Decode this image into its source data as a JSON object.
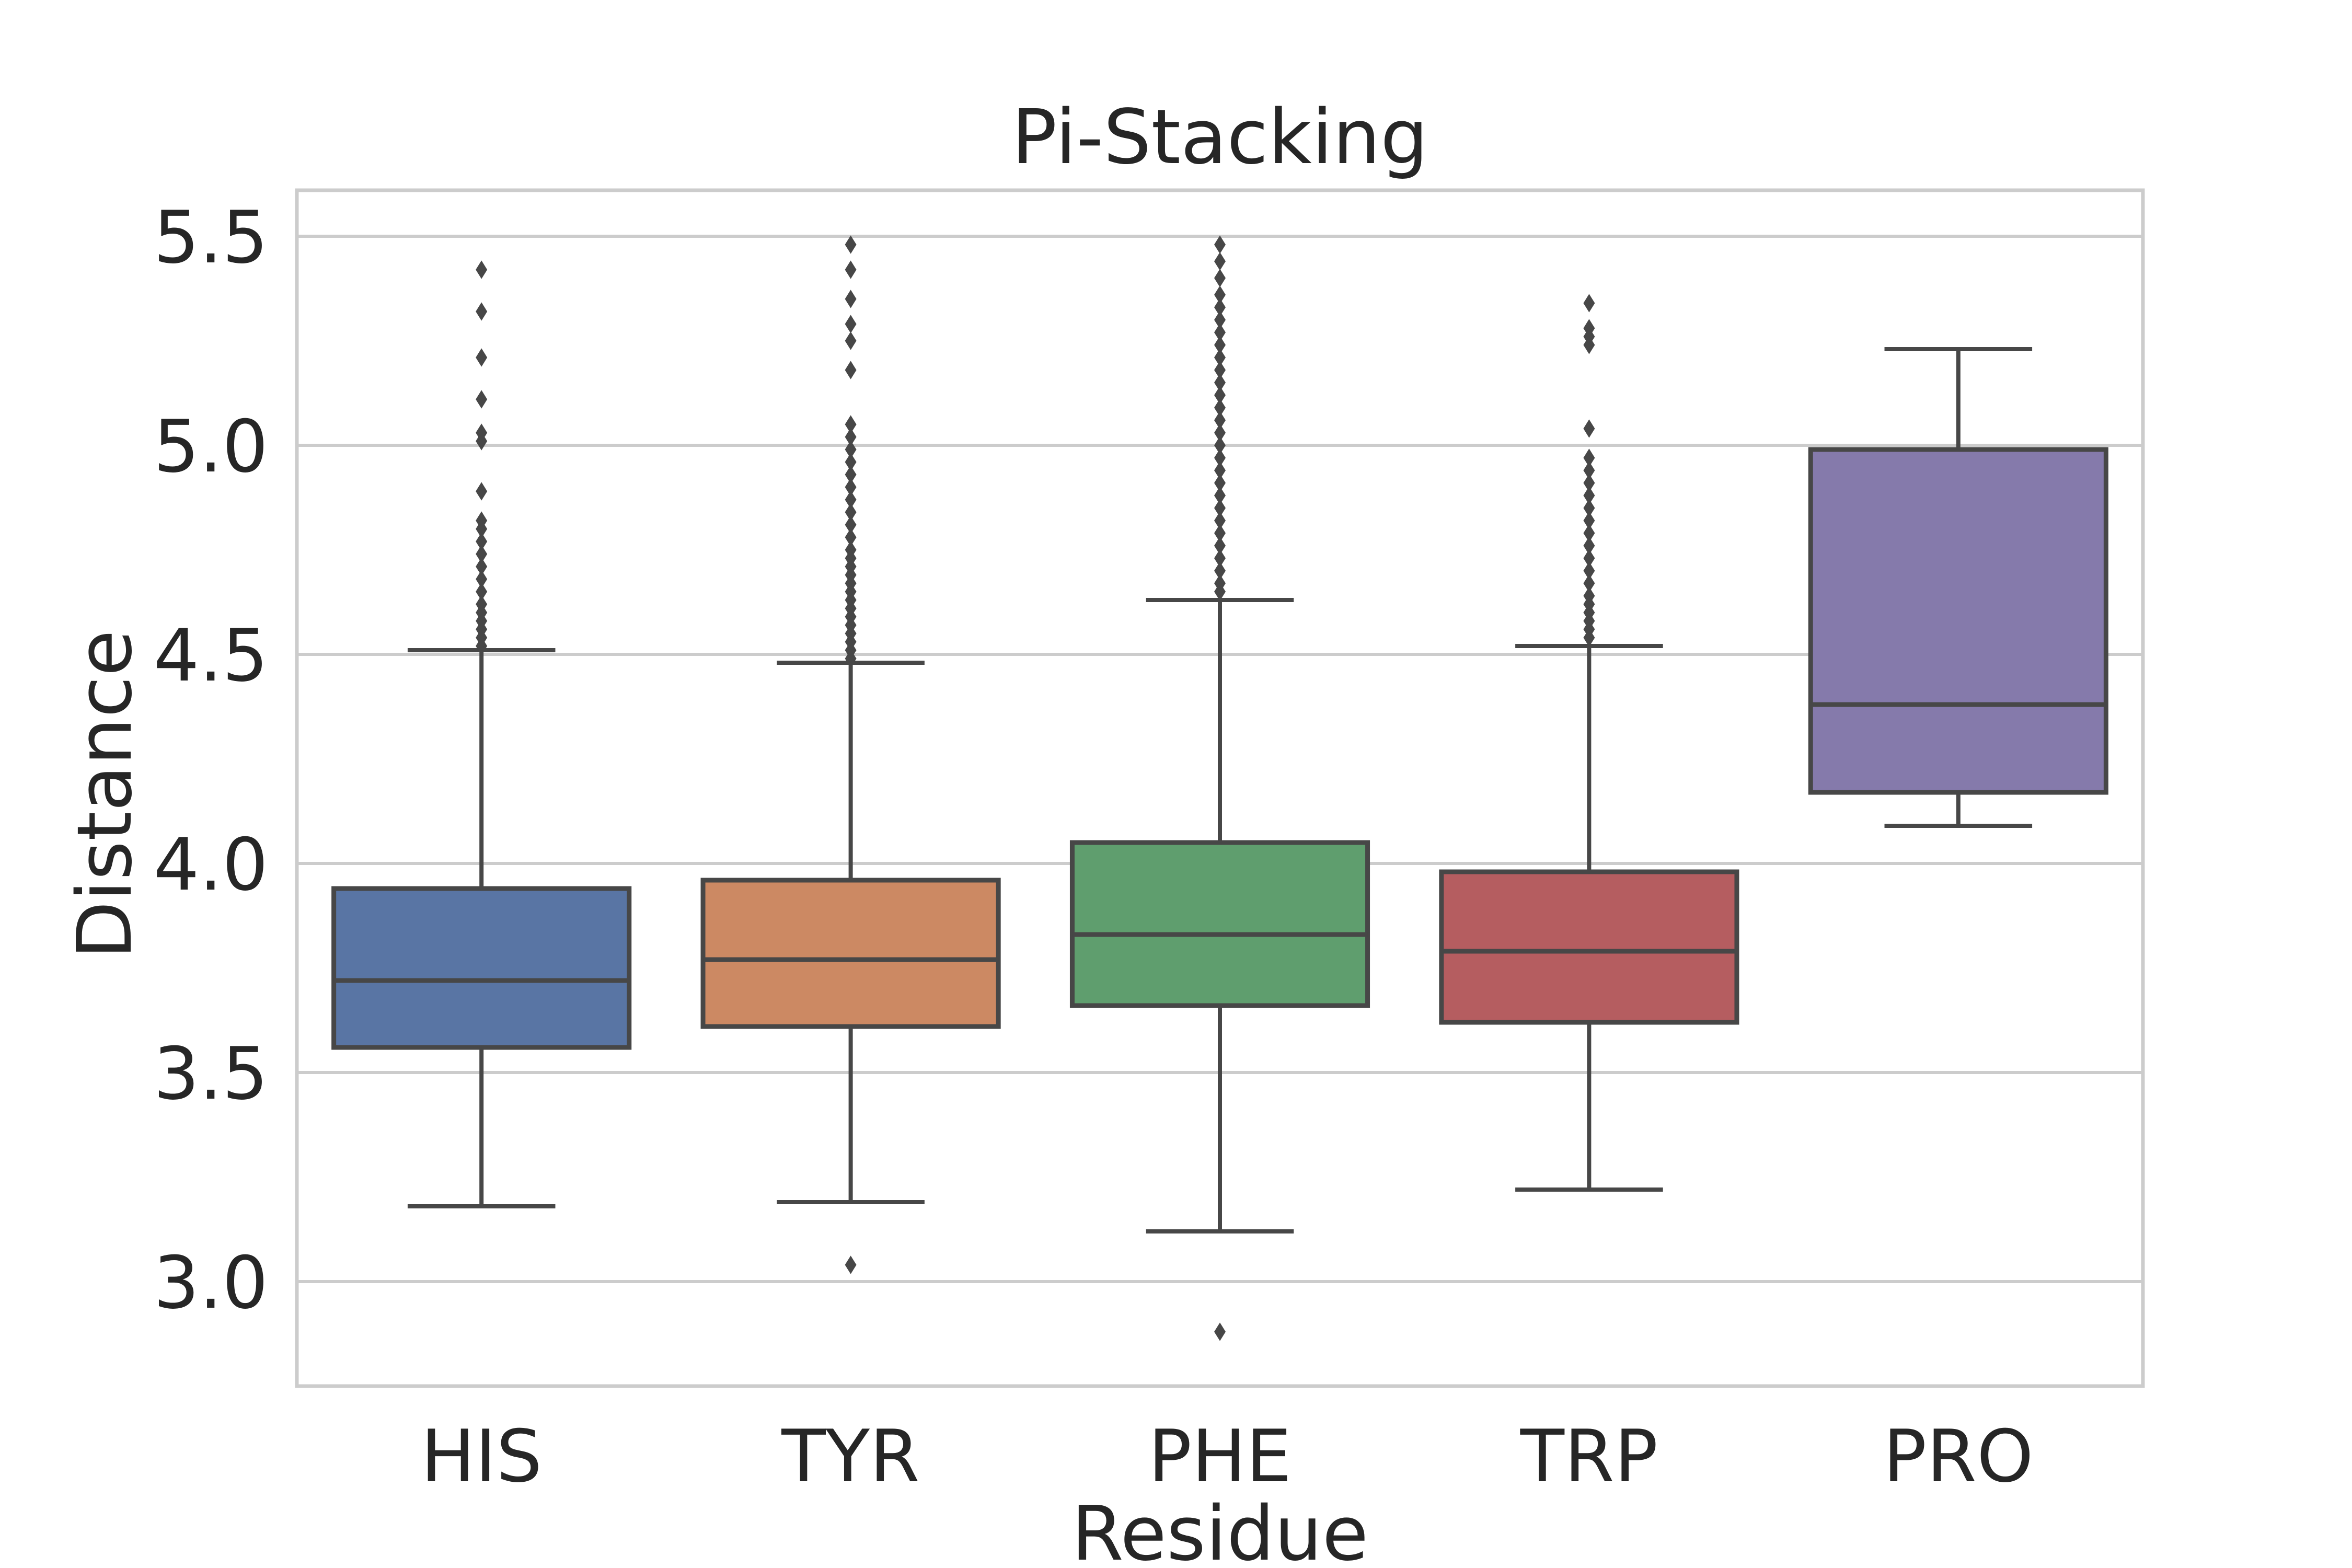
{
  "chart_data": {
    "type": "boxplot",
    "title": "Pi-Stacking",
    "xlabel": "Residue",
    "ylabel": "Distance",
    "ylim": [
      2.75,
      5.61
    ],
    "yticks": [
      3.0,
      3.5,
      4.0,
      4.5,
      5.0,
      5.5
    ],
    "ytick_labels": [
      "3.0",
      "3.5",
      "4.0",
      "4.5",
      "5.0",
      "5.5"
    ],
    "grid": true,
    "categories": [
      "HIS",
      "TYR",
      "PHE",
      "TRP",
      "PRO"
    ],
    "boxes": [
      {
        "label": "HIS",
        "color": "#5975a4",
        "whisker_low": 3.18,
        "q1": 3.56,
        "median": 3.72,
        "q3": 3.94,
        "whisker_high": 4.51,
        "outliers": [
          4.52,
          4.54,
          4.56,
          4.58,
          4.6,
          4.62,
          4.65,
          4.68,
          4.71,
          4.74,
          4.77,
          4.8,
          4.82,
          4.89,
          5.01,
          5.03,
          5.11,
          5.21,
          5.32,
          5.42
        ]
      },
      {
        "label": "TYR",
        "color": "#cc8963",
        "whisker_low": 3.19,
        "q1": 3.61,
        "median": 3.77,
        "q3": 3.96,
        "whisker_high": 4.48,
        "outliers": [
          3.04,
          4.49,
          4.51,
          4.53,
          4.55,
          4.57,
          4.59,
          4.61,
          4.63,
          4.65,
          4.67,
          4.69,
          4.71,
          4.73,
          4.75,
          4.78,
          4.81,
          4.84,
          4.87,
          4.9,
          4.93,
          4.96,
          4.99,
          5.02,
          5.05,
          5.18,
          5.25,
          5.29,
          5.35,
          5.42,
          5.48
        ]
      },
      {
        "label": "PHE",
        "color": "#5f9e6e",
        "whisker_low": 3.12,
        "q1": 3.66,
        "median": 3.83,
        "q3": 4.05,
        "whisker_high": 4.63,
        "outliers": [
          2.88,
          4.65,
          4.67,
          4.7,
          4.73,
          4.76,
          4.79,
          4.82,
          4.85,
          4.88,
          4.91,
          4.94,
          4.97,
          5.0,
          5.03,
          5.06,
          5.09,
          5.12,
          5.15,
          5.18,
          5.21,
          5.24,
          5.27,
          5.3,
          5.33,
          5.36,
          5.4,
          5.44,
          5.48
        ]
      },
      {
        "label": "TRP",
        "color": "#b55d60",
        "whisker_low": 3.22,
        "q1": 3.62,
        "median": 3.79,
        "q3": 3.98,
        "whisker_high": 4.52,
        "outliers": [
          4.54,
          4.56,
          4.58,
          4.6,
          4.62,
          4.64,
          4.67,
          4.7,
          4.73,
          4.76,
          4.79,
          4.82,
          4.85,
          4.88,
          4.91,
          4.94,
          4.97,
          5.04,
          5.24,
          5.26,
          5.28,
          5.34
        ]
      },
      {
        "label": "PRO",
        "color": "#857aab",
        "whisker_low": 4.09,
        "q1": 4.17,
        "median": 4.38,
        "q3": 4.99,
        "whisker_high": 5.23,
        "outliers": []
      }
    ]
  }
}
